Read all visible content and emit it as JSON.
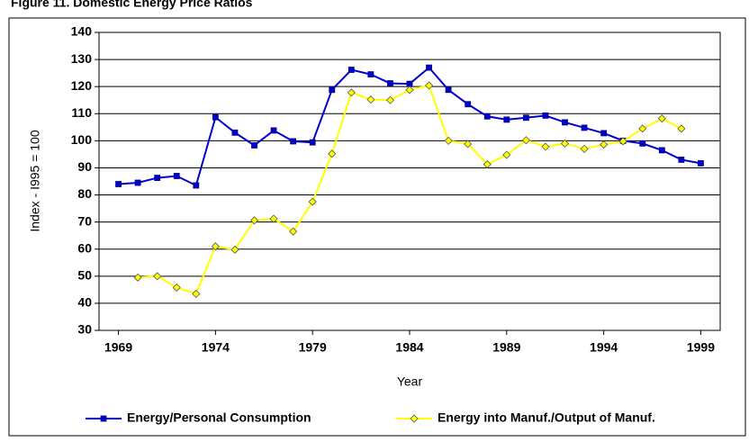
{
  "chart_data": {
    "type": "line",
    "title": "Figure 11. Domestic Energy Price Ratios",
    "xlabel": "Year",
    "ylabel": "Index - I995 = 100",
    "x": [
      1969,
      1970,
      1971,
      1972,
      1973,
      1974,
      1975,
      1976,
      1977,
      1978,
      1979,
      1980,
      1981,
      1982,
      1983,
      1984,
      1985,
      1986,
      1987,
      1988,
      1989,
      1990,
      1991,
      1992,
      1993,
      1994,
      1995,
      1996,
      1997,
      1998,
      1999
    ],
    "xlim": [
      1968,
      2000
    ],
    "xticks": [
      1969,
      1974,
      1979,
      1984,
      1989,
      1994,
      1999
    ],
    "ylim": [
      30,
      140
    ],
    "yticks": [
      30,
      40,
      50,
      60,
      70,
      80,
      90,
      100,
      110,
      120,
      130,
      140
    ],
    "grid": true,
    "legend": "bottom",
    "series": [
      {
        "name": "Energy/Personal Consumption",
        "color": "#0000cc",
        "marker": "square",
        "values": [
          84,
          84.5,
          86.3,
          87,
          83.5,
          108.7,
          103,
          98.3,
          103.8,
          99.8,
          99.4,
          118.8,
          126.2,
          124.5,
          121.2,
          121,
          127,
          118.8,
          113.5,
          109,
          107.8,
          108.5,
          109.3,
          106.8,
          104.8,
          102.8,
          100,
          99,
          96.5,
          93,
          91.7
        ]
      },
      {
        "name": "Energy into Manuf./Output of Manuf.",
        "color": "#ffff00",
        "marker": "diamond",
        "values": [
          null,
          49.5,
          50,
          45.8,
          43.5,
          61,
          59.8,
          70.6,
          71.2,
          66.5,
          77.5,
          95.2,
          117.8,
          115.2,
          115,
          118.8,
          120.4,
          100,
          98.8,
          91.3,
          94.8,
          100.2,
          97.8,
          99,
          97,
          98.6,
          99.8,
          104.5,
          108.2,
          104.5,
          null
        ]
      }
    ]
  }
}
